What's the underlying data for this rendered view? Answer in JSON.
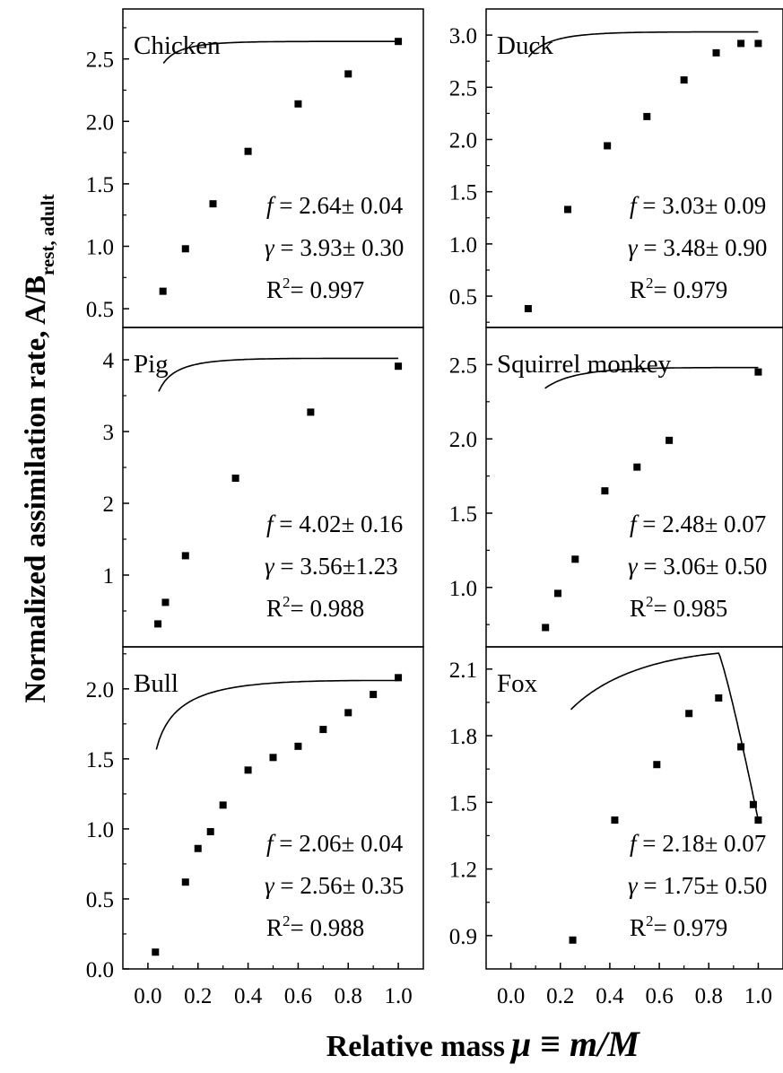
{
  "figure": {
    "ylabel": "Normalized assimilation rate, A/B",
    "ylabel_sub": "rest, adult",
    "xlabel_prefix": "Relative mass",
    "xlabel_symbol": "μ ≡ m/M"
  },
  "chart_data": [
    {
      "type": "scatter",
      "title": "Chicken",
      "xlim": [
        -0.1,
        1.1
      ],
      "ylim": [
        0.35,
        2.9
      ],
      "yticks": [
        0.5,
        1.0,
        1.5,
        2.0,
        2.5
      ],
      "ytick_labels": [
        "0.5",
        "1.0",
        "1.5",
        "2.0",
        "2.5"
      ],
      "x": [
        0.06,
        0.15,
        0.26,
        0.4,
        0.6,
        0.8,
        1.0
      ],
      "y": [
        0.64,
        0.98,
        1.34,
        1.76,
        2.14,
        2.38,
        2.64
      ],
      "fit": {
        "f": 2.64,
        "gamma": 3.93,
        "peak": null
      },
      "annotations": {
        "f": "2.64± 0.04",
        "gamma": "3.93± 0.30",
        "r2": "0.997"
      }
    },
    {
      "type": "scatter",
      "title": "Duck",
      "xlim": [
        -0.1,
        1.1
      ],
      "ylim": [
        0.2,
        3.25
      ],
      "yticks": [
        0.5,
        1.0,
        1.5,
        2.0,
        2.5,
        3.0
      ],
      "ytick_labels": [
        "0.5",
        "1.0",
        "1.5",
        "2.0",
        "2.5",
        "3.0"
      ],
      "x": [
        0.07,
        0.23,
        0.39,
        0.55,
        0.7,
        0.83,
        0.93,
        1.0
      ],
      "y": [
        0.38,
        1.33,
        1.94,
        2.22,
        2.57,
        2.83,
        2.92,
        2.92
      ],
      "fit": {
        "f": 3.03,
        "gamma": 3.48,
        "peak": null
      },
      "annotations": {
        "f": "3.03± 0.09",
        "gamma": "3.48± 0.90",
        "r2": "0.979"
      }
    },
    {
      "type": "scatter",
      "title": "Pig",
      "xlim": [
        -0.1,
        1.1
      ],
      "ylim": [
        0.0,
        4.45
      ],
      "yticks": [
        1,
        2,
        3,
        4
      ],
      "ytick_labels": [
        "1",
        "2",
        "3",
        "4"
      ],
      "x": [
        0.04,
        0.07,
        0.15,
        0.35,
        0.65,
        1.0
      ],
      "y": [
        0.32,
        0.62,
        1.27,
        2.35,
        3.27,
        3.91
      ],
      "fit": {
        "f": 4.02,
        "gamma": 3.56,
        "peak": null
      },
      "annotations": {
        "f": "4.02± 0.16",
        "gamma": "3.56±1.23",
        "r2": "0.988"
      }
    },
    {
      "type": "scatter",
      "title": "Squirrel monkey",
      "xlim": [
        -0.1,
        1.1
      ],
      "ylim": [
        0.6,
        2.75
      ],
      "yticks": [
        1.0,
        1.5,
        2.0,
        2.5
      ],
      "ytick_labels": [
        "1.0",
        "1.5",
        "2.0",
        "2.5"
      ],
      "x": [
        0.14,
        0.19,
        0.26,
        0.38,
        0.51,
        0.64,
        1.0
      ],
      "y": [
        0.73,
        0.96,
        1.19,
        1.65,
        1.81,
        1.99,
        2.45
      ],
      "fit": {
        "f": 2.48,
        "gamma": 3.06,
        "peak": null
      },
      "annotations": {
        "f": "2.48± 0.07",
        "gamma": "3.06± 0.50",
        "r2": "0.985"
      }
    },
    {
      "type": "scatter",
      "title": "Bull",
      "xlim": [
        -0.1,
        1.1
      ],
      "ylim": [
        0.0,
        2.3
      ],
      "yticks": [
        0.0,
        0.5,
        1.0,
        1.5,
        2.0
      ],
      "ytick_labels": [
        "0.0",
        "0.5",
        "1.0",
        "1.5",
        "2.0"
      ],
      "xticks": [
        0.0,
        0.2,
        0.4,
        0.6,
        0.8,
        1.0
      ],
      "xtick_labels": [
        "0.0",
        "0.2",
        "0.4",
        "0.6",
        "0.8",
        "1.0"
      ],
      "x": [
        0.03,
        0.15,
        0.2,
        0.25,
        0.3,
        0.4,
        0.5,
        0.6,
        0.7,
        0.8,
        0.9,
        1.0
      ],
      "y": [
        0.12,
        0.62,
        0.86,
        0.98,
        1.17,
        1.42,
        1.51,
        1.59,
        1.71,
        1.83,
        1.96,
        2.08
      ],
      "fit": {
        "f": 2.06,
        "gamma": 2.56,
        "peak": null
      },
      "annotations": {
        "f": "2.06± 0.04",
        "gamma": "2.56± 0.35",
        "r2": "0.988"
      }
    },
    {
      "type": "scatter",
      "title": "Fox",
      "xlim": [
        -0.1,
        1.1
      ],
      "ylim": [
        0.75,
        2.2
      ],
      "yticks": [
        0.9,
        1.2,
        1.5,
        1.8,
        2.1
      ],
      "ytick_labels": [
        "0.9",
        "1.2",
        "1.5",
        "1.8",
        "2.1"
      ],
      "xticks": [
        0.0,
        0.2,
        0.4,
        0.6,
        0.8,
        1.0
      ],
      "xtick_labels": [
        "0.0",
        "0.2",
        "0.4",
        "0.6",
        "0.8",
        "1.0"
      ],
      "x": [
        0.25,
        0.42,
        0.59,
        0.72,
        0.84,
        0.93,
        0.98,
        1.0
      ],
      "y": [
        0.88,
        1.42,
        1.67,
        1.9,
        1.97,
        1.75,
        1.49,
        1.42
      ],
      "fit": {
        "f": 2.18,
        "gamma": 1.75,
        "peak": 0.84
      },
      "annotations": {
        "f": "2.18± 0.07",
        "gamma": "1.75± 0.50",
        "r2": "0.979"
      }
    }
  ]
}
